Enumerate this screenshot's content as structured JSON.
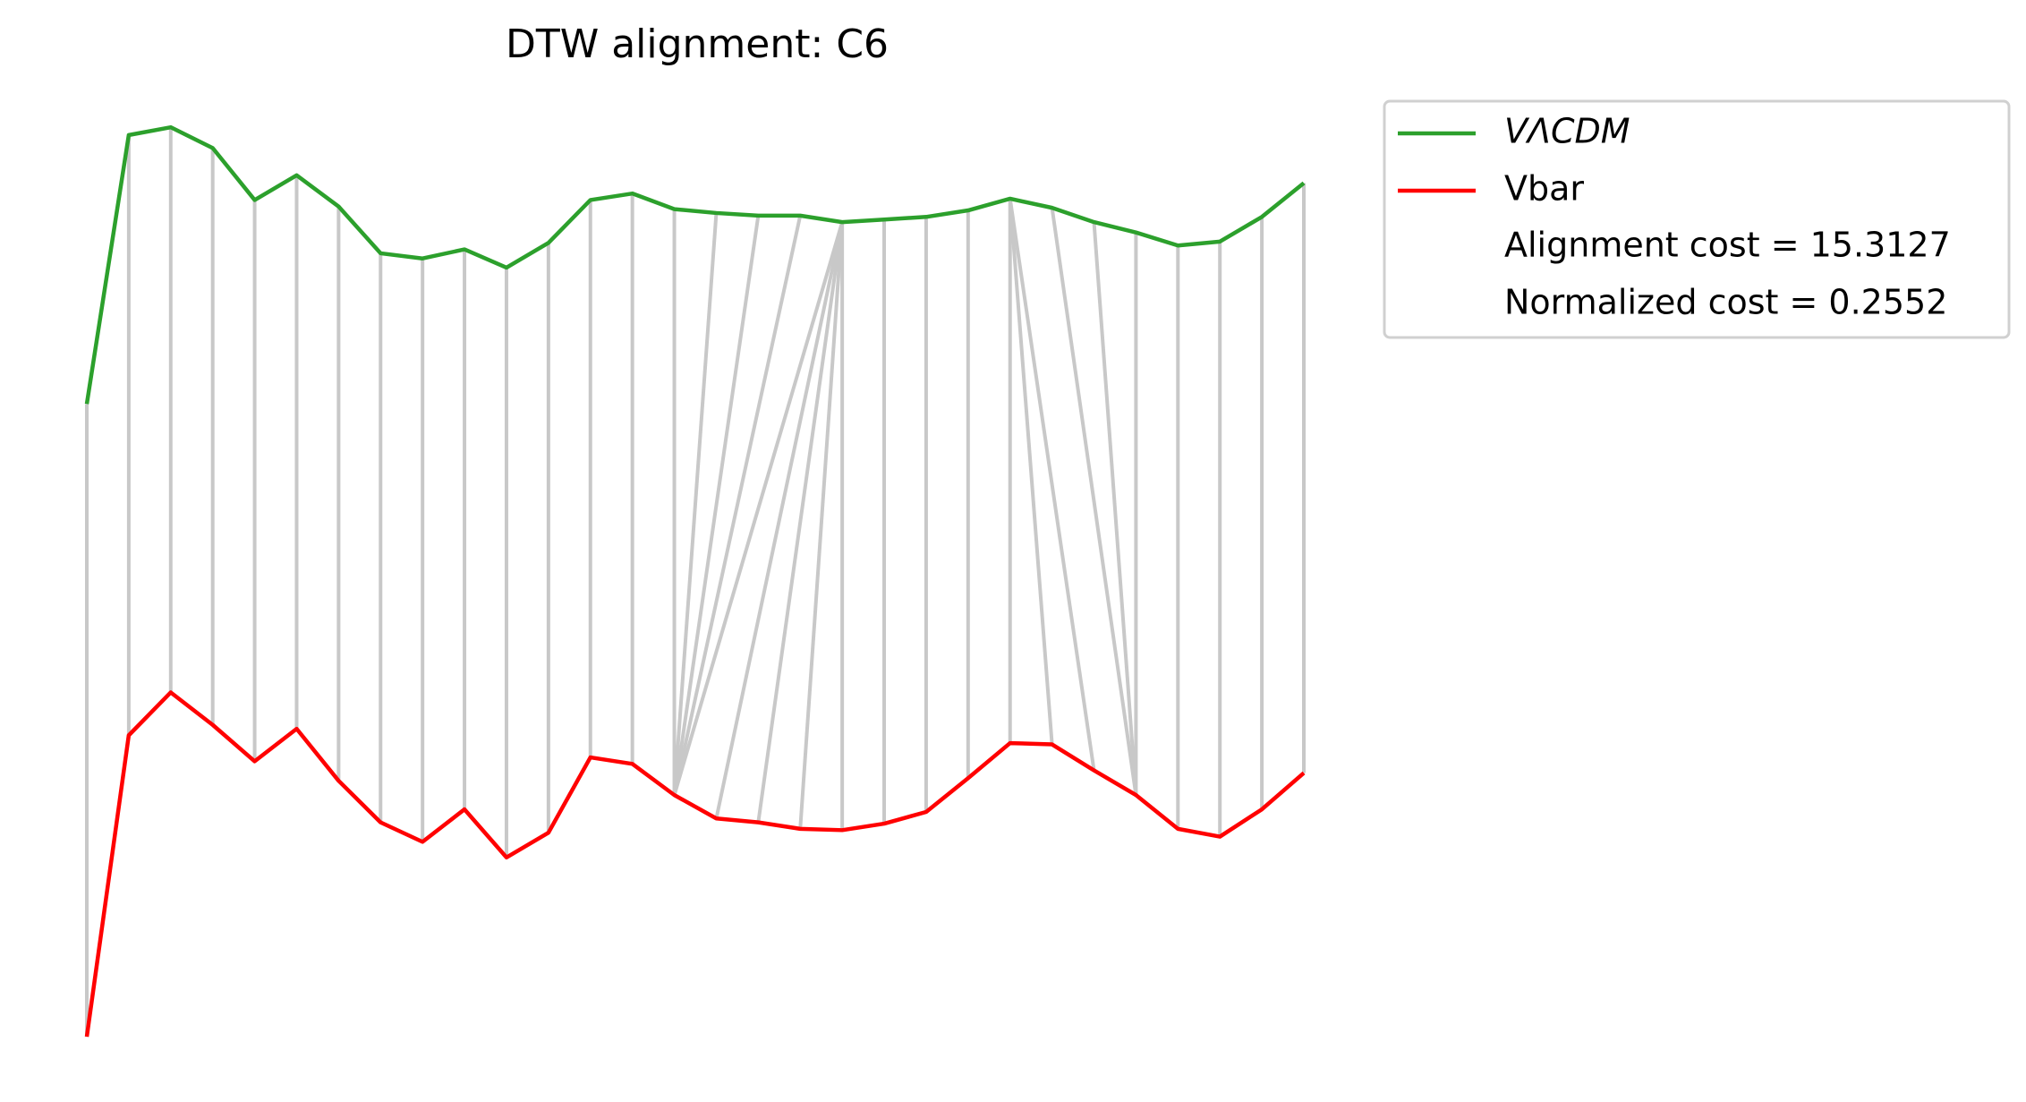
{
  "chart_data": {
    "type": "dtw",
    "title": "DTW alignment: C6",
    "x": [
      0,
      1,
      2,
      3,
      4,
      5,
      6,
      7,
      8,
      9,
      10,
      11,
      12,
      13,
      14,
      15,
      16,
      17,
      18,
      19,
      20,
      21,
      22,
      23,
      24,
      25,
      26,
      27,
      28,
      29
    ],
    "xlim": [
      0,
      29
    ],
    "ylim": [
      6,
      158
    ],
    "series": [
      {
        "name": "VΛCDM",
        "color": "#2ca02c",
        "values": [
          107.8,
          149.2,
          150.4,
          147.2,
          139.2,
          143,
          138.2,
          131,
          130.2,
          131.6,
          128.8,
          132.6,
          139.2,
          140.2,
          137.8,
          137.2,
          136.8,
          136.8,
          135.8,
          136.2,
          136.6,
          137.6,
          139.4,
          138,
          135.8,
          134.2,
          132.2,
          132.8,
          136.6,
          141.8
        ]
      },
      {
        "name": "Vbar",
        "color": "#ff0000",
        "values": [
          10.4,
          56.8,
          63.4,
          58.4,
          52.8,
          57.8,
          49.8,
          43.4,
          40.4,
          45.4,
          38,
          41.8,
          53.4,
          52.4,
          47.6,
          44,
          43.4,
          42.4,
          42.2,
          43.2,
          45,
          50.2,
          55.6,
          55.4,
          51.4,
          47.6,
          42.4,
          41.2,
          45.4,
          51
        ]
      }
    ],
    "alignment": [
      [
        0,
        0
      ],
      [
        1,
        1
      ],
      [
        2,
        2
      ],
      [
        3,
        3
      ],
      [
        4,
        4
      ],
      [
        5,
        5
      ],
      [
        6,
        6
      ],
      [
        7,
        7
      ],
      [
        8,
        8
      ],
      [
        9,
        9
      ],
      [
        10,
        10
      ],
      [
        11,
        11
      ],
      [
        12,
        12
      ],
      [
        13,
        13
      ],
      [
        14,
        14
      ],
      [
        15,
        14
      ],
      [
        16,
        14
      ],
      [
        17,
        14
      ],
      [
        18,
        14
      ],
      [
        18,
        15
      ],
      [
        18,
        16
      ],
      [
        18,
        17
      ],
      [
        18,
        18
      ],
      [
        19,
        19
      ],
      [
        20,
        20
      ],
      [
        21,
        21
      ],
      [
        22,
        22
      ],
      [
        22,
        23
      ],
      [
        22,
        24
      ],
      [
        23,
        25
      ],
      [
        24,
        25
      ],
      [
        25,
        25
      ],
      [
        26,
        26
      ],
      [
        27,
        27
      ],
      [
        28,
        28
      ],
      [
        29,
        29
      ]
    ],
    "alignment_color": "#c8c8c8",
    "annotations": [
      "Alignment cost = 15.3127",
      "Normalized cost = 0.2552"
    ],
    "legend": "upper right outside"
  }
}
